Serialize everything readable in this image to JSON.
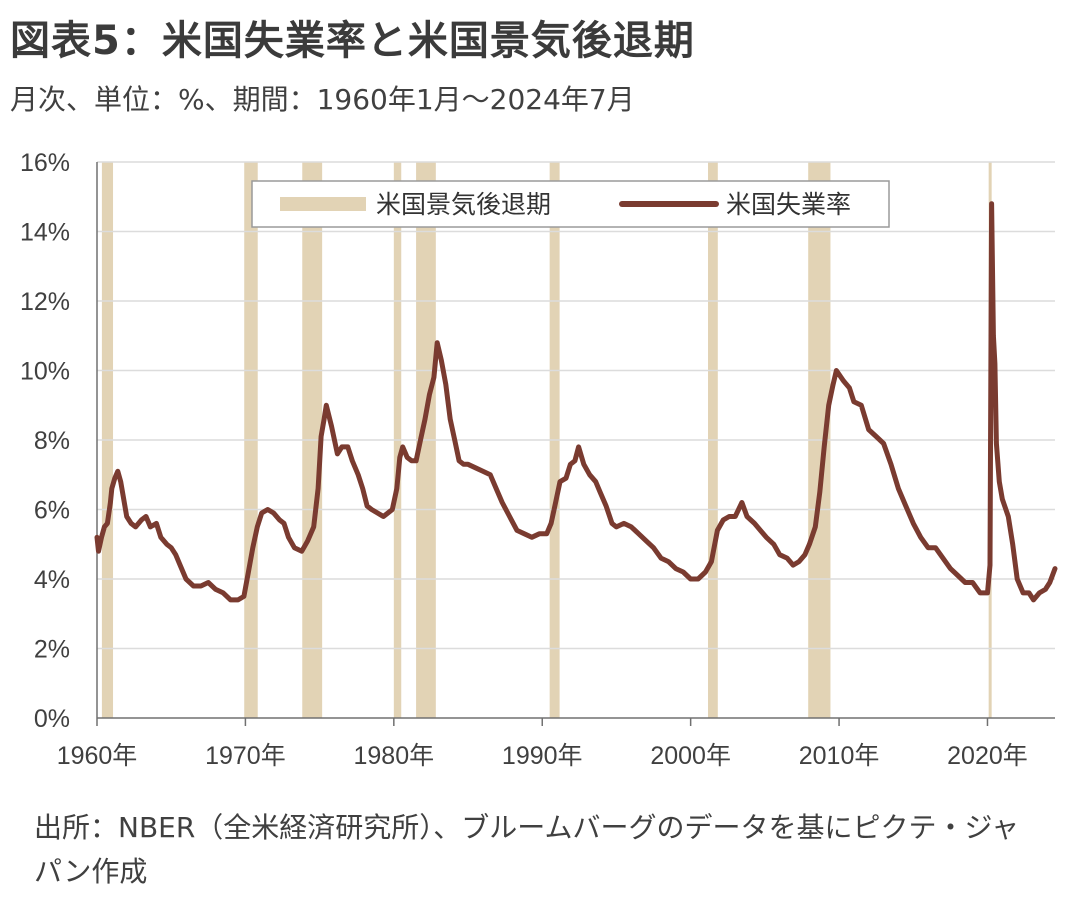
{
  "header": {
    "title": "図表5：米国失業率と米国景気後退期",
    "subtitle": "月次、単位：%、期間：1960年1月～2024年7月"
  },
  "footer": {
    "source": "出所：NBER（全米経済研究所）、ブルームバーグのデータを基にピクテ・ジャパン作成"
  },
  "colors": {
    "recession": "#e2d3b5",
    "unemployment": "#7a3b30",
    "grid": "#dcdcdc",
    "axis": "#707070"
  },
  "chart_data": {
    "type": "line",
    "title": "図表5：米国失業率と米国景気後退期",
    "xlim": [
      1960,
      2024.55
    ],
    "ylim": [
      0,
      16
    ],
    "y_ticks": [
      0,
      2,
      4,
      6,
      8,
      10,
      12,
      14,
      16
    ],
    "y_tick_labels": [
      "0%",
      "2%",
      "4%",
      "6%",
      "8%",
      "10%",
      "12%",
      "14%",
      "16%"
    ],
    "x_ticks": [
      1960,
      1970,
      1980,
      1990,
      2000,
      2010,
      2020
    ],
    "x_tick_labels": [
      "1960年",
      "1970年",
      "1980年",
      "1990年",
      "2000年",
      "2010年",
      "2020年"
    ],
    "grid": "horizontal",
    "legend": {
      "position": "top-center",
      "entries": [
        "米国景気後退期",
        "米国失業率"
      ]
    },
    "recessions": {
      "name": "米国景気後退期",
      "periods": [
        [
          1960.33,
          1961.08
        ],
        [
          1969.92,
          1970.83
        ],
        [
          1973.83,
          1975.17
        ],
        [
          1980.0,
          1980.5
        ],
        [
          1981.5,
          1982.83
        ],
        [
          1990.5,
          1991.17
        ],
        [
          2001.17,
          2001.83
        ],
        [
          2007.92,
          2009.42
        ],
        [
          2020.08,
          2020.25
        ]
      ]
    },
    "series": [
      {
        "name": "米国失業率",
        "points": [
          [
            1960.0,
            5.2
          ],
          [
            1960.1,
            4.8
          ],
          [
            1960.3,
            5.2
          ],
          [
            1960.5,
            5.5
          ],
          [
            1960.7,
            5.6
          ],
          [
            1960.9,
            6.2
          ],
          [
            1961.0,
            6.6
          ],
          [
            1961.2,
            6.9
          ],
          [
            1961.4,
            7.1
          ],
          [
            1961.6,
            6.8
          ],
          [
            1961.8,
            6.3
          ],
          [
            1962.0,
            5.8
          ],
          [
            1962.3,
            5.6
          ],
          [
            1962.6,
            5.5
          ],
          [
            1963.0,
            5.7
          ],
          [
            1963.3,
            5.8
          ],
          [
            1963.6,
            5.5
          ],
          [
            1964.0,
            5.6
          ],
          [
            1964.3,
            5.2
          ],
          [
            1964.7,
            5.0
          ],
          [
            1965.0,
            4.9
          ],
          [
            1965.3,
            4.7
          ],
          [
            1965.6,
            4.4
          ],
          [
            1966.0,
            4.0
          ],
          [
            1966.5,
            3.8
          ],
          [
            1967.0,
            3.8
          ],
          [
            1967.5,
            3.9
          ],
          [
            1968.0,
            3.7
          ],
          [
            1968.5,
            3.6
          ],
          [
            1969.0,
            3.4
          ],
          [
            1969.5,
            3.4
          ],
          [
            1969.9,
            3.5
          ],
          [
            1970.2,
            4.2
          ],
          [
            1970.5,
            4.9
          ],
          [
            1970.8,
            5.5
          ],
          [
            1971.1,
            5.9
          ],
          [
            1971.5,
            6.0
          ],
          [
            1971.9,
            5.9
          ],
          [
            1972.3,
            5.7
          ],
          [
            1972.6,
            5.6
          ],
          [
            1972.9,
            5.2
          ],
          [
            1973.3,
            4.9
          ],
          [
            1973.8,
            4.8
          ],
          [
            1974.2,
            5.1
          ],
          [
            1974.6,
            5.5
          ],
          [
            1974.9,
            6.6
          ],
          [
            1975.1,
            8.1
          ],
          [
            1975.3,
            8.6
          ],
          [
            1975.45,
            9.0
          ],
          [
            1975.8,
            8.4
          ],
          [
            1976.2,
            7.6
          ],
          [
            1976.5,
            7.8
          ],
          [
            1976.9,
            7.8
          ],
          [
            1977.2,
            7.4
          ],
          [
            1977.6,
            7.0
          ],
          [
            1977.9,
            6.6
          ],
          [
            1978.2,
            6.1
          ],
          [
            1978.5,
            6.0
          ],
          [
            1978.9,
            5.9
          ],
          [
            1979.3,
            5.8
          ],
          [
            1979.6,
            5.9
          ],
          [
            1979.9,
            6.0
          ],
          [
            1980.2,
            6.6
          ],
          [
            1980.4,
            7.5
          ],
          [
            1980.6,
            7.8
          ],
          [
            1980.9,
            7.5
          ],
          [
            1981.2,
            7.4
          ],
          [
            1981.5,
            7.4
          ],
          [
            1981.8,
            8.0
          ],
          [
            1982.1,
            8.6
          ],
          [
            1982.4,
            9.3
          ],
          [
            1982.7,
            9.8
          ],
          [
            1982.92,
            10.8
          ],
          [
            1983.2,
            10.3
          ],
          [
            1983.5,
            9.6
          ],
          [
            1983.8,
            8.6
          ],
          [
            1984.1,
            8.0
          ],
          [
            1984.4,
            7.4
          ],
          [
            1984.7,
            7.3
          ],
          [
            1985.0,
            7.3
          ],
          [
            1985.5,
            7.2
          ],
          [
            1986.0,
            7.1
          ],
          [
            1986.5,
            7.0
          ],
          [
            1986.9,
            6.6
          ],
          [
            1987.3,
            6.2
          ],
          [
            1987.8,
            5.8
          ],
          [
            1988.3,
            5.4
          ],
          [
            1988.8,
            5.3
          ],
          [
            1989.3,
            5.2
          ],
          [
            1989.8,
            5.3
          ],
          [
            1990.3,
            5.3
          ],
          [
            1990.6,
            5.6
          ],
          [
            1990.9,
            6.2
          ],
          [
            1991.2,
            6.8
          ],
          [
            1991.6,
            6.9
          ],
          [
            1991.9,
            7.3
          ],
          [
            1992.2,
            7.4
          ],
          [
            1992.45,
            7.8
          ],
          [
            1992.8,
            7.3
          ],
          [
            1993.2,
            7.0
          ],
          [
            1993.6,
            6.8
          ],
          [
            1993.9,
            6.5
          ],
          [
            1994.3,
            6.1
          ],
          [
            1994.7,
            5.6
          ],
          [
            1995.0,
            5.5
          ],
          [
            1995.5,
            5.6
          ],
          [
            1996.0,
            5.5
          ],
          [
            1996.5,
            5.3
          ],
          [
            1997.0,
            5.1
          ],
          [
            1997.5,
            4.9
          ],
          [
            1998.0,
            4.6
          ],
          [
            1998.5,
            4.5
          ],
          [
            1999.0,
            4.3
          ],
          [
            1999.5,
            4.2
          ],
          [
            2000.0,
            4.0
          ],
          [
            2000.5,
            4.0
          ],
          [
            2001.0,
            4.2
          ],
          [
            2001.4,
            4.5
          ],
          [
            2001.8,
            5.4
          ],
          [
            2002.2,
            5.7
          ],
          [
            2002.6,
            5.8
          ],
          [
            2003.0,
            5.8
          ],
          [
            2003.45,
            6.2
          ],
          [
            2003.8,
            5.8
          ],
          [
            2004.3,
            5.6
          ],
          [
            2004.7,
            5.4
          ],
          [
            2005.1,
            5.2
          ],
          [
            2005.6,
            5.0
          ],
          [
            2006.0,
            4.7
          ],
          [
            2006.5,
            4.6
          ],
          [
            2006.9,
            4.4
          ],
          [
            2007.3,
            4.5
          ],
          [
            2007.7,
            4.7
          ],
          [
            2008.0,
            5.0
          ],
          [
            2008.4,
            5.5
          ],
          [
            2008.7,
            6.5
          ],
          [
            2009.0,
            7.8
          ],
          [
            2009.3,
            9.0
          ],
          [
            2009.6,
            9.6
          ],
          [
            2009.82,
            10.0
          ],
          [
            2010.3,
            9.7
          ],
          [
            2010.7,
            9.5
          ],
          [
            2011.0,
            9.1
          ],
          [
            2011.5,
            9.0
          ],
          [
            2012.0,
            8.3
          ],
          [
            2012.5,
            8.1
          ],
          [
            2013.0,
            7.9
          ],
          [
            2013.5,
            7.3
          ],
          [
            2014.0,
            6.6
          ],
          [
            2014.5,
            6.1
          ],
          [
            2015.0,
            5.6
          ],
          [
            2015.5,
            5.2
          ],
          [
            2016.0,
            4.9
          ],
          [
            2016.5,
            4.9
          ],
          [
            2017.0,
            4.6
          ],
          [
            2017.5,
            4.3
          ],
          [
            2018.0,
            4.1
          ],
          [
            2018.5,
            3.9
          ],
          [
            2019.0,
            3.9
          ],
          [
            2019.5,
            3.6
          ],
          [
            2020.0,
            3.6
          ],
          [
            2020.17,
            4.4
          ],
          [
            2020.28,
            14.8
          ],
          [
            2020.4,
            11.0
          ],
          [
            2020.5,
            10.2
          ],
          [
            2020.6,
            7.9
          ],
          [
            2020.8,
            6.8
          ],
          [
            2021.0,
            6.3
          ],
          [
            2021.4,
            5.8
          ],
          [
            2021.7,
            5.0
          ],
          [
            2022.0,
            4.0
          ],
          [
            2022.4,
            3.6
          ],
          [
            2022.8,
            3.6
          ],
          [
            2023.1,
            3.4
          ],
          [
            2023.5,
            3.6
          ],
          [
            2023.9,
            3.7
          ],
          [
            2024.2,
            3.9
          ],
          [
            2024.55,
            4.3
          ]
        ]
      }
    ]
  }
}
